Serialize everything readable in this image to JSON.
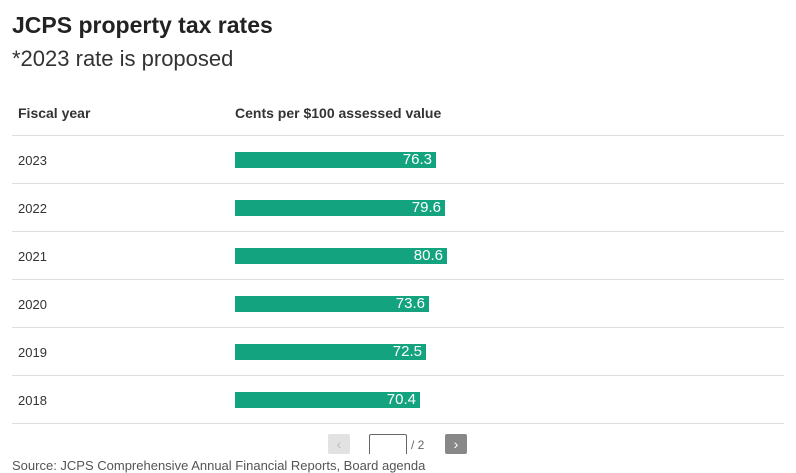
{
  "title": "JCPS property tax rates",
  "subtitle": "*2023 rate is proposed",
  "table": {
    "col_year": "Fiscal year",
    "col_value": "Cents per $100 assessed value"
  },
  "chart_data": {
    "type": "bar",
    "title": "JCPS property tax rates",
    "subtitle": "*2023 rate is proposed",
    "xlabel": "Cents per $100 assessed value",
    "ylabel": "Fiscal year",
    "categories": [
      "2023",
      "2022",
      "2021",
      "2020",
      "2019",
      "2018"
    ],
    "values": [
      76.3,
      79.6,
      80.6,
      73.6,
      72.5,
      70.4
    ],
    "labels": [
      "76.3",
      "79.6",
      "80.6",
      "73.6",
      "72.5",
      "70.4"
    ],
    "bar_color": "#14a37f"
  },
  "pager": {
    "prev": "‹",
    "total": "/ 2",
    "next": "›"
  },
  "source": "Source: JCPS Comprehensive Annual Financial Reports, Board agenda"
}
